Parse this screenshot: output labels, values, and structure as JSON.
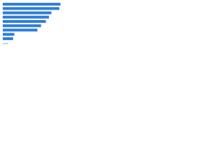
{
  "chart_data": {
    "type": "bar",
    "orientation": "horizontal",
    "categories": [
      null,
      null,
      null,
      null,
      null,
      null,
      null,
      null,
      null
    ],
    "values": [
      95,
      93,
      80,
      76,
      71,
      63,
      57,
      19,
      17
    ],
    "color": "#2f7ed8",
    "xlim": [
      0,
      100
    ]
  }
}
